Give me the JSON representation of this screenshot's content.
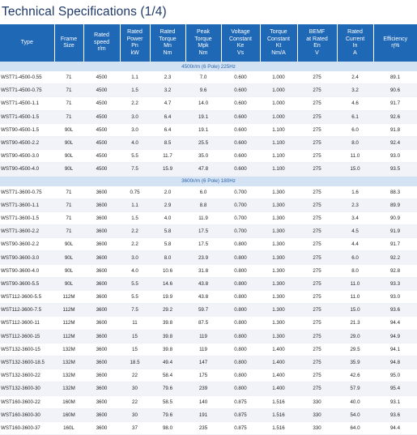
{
  "title": "Technical Specifications (1/4)",
  "columns": [
    {
      "lines": [
        "Type"
      ]
    },
    {
      "lines": [
        "Frame",
        "Size"
      ]
    },
    {
      "lines": [
        "Rated",
        "speed",
        "r/m"
      ]
    },
    {
      "lines": [
        "Rated",
        "Power",
        "Pn",
        "kW"
      ]
    },
    {
      "lines": [
        "Rated",
        "Torque",
        "Mn",
        "Nm"
      ]
    },
    {
      "lines": [
        "Peak",
        "Torque",
        "Mpk",
        "Nm"
      ]
    },
    {
      "lines": [
        "Voltage",
        "Constant",
        "Ke",
        "Vs"
      ]
    },
    {
      "lines": [
        "Torque",
        "Constant",
        "Kt",
        "Nm/A"
      ]
    },
    {
      "lines": [
        "BEMF",
        "at Rated",
        "En",
        "V"
      ]
    },
    {
      "lines": [
        "Rated",
        "Current",
        "In",
        "A"
      ]
    },
    {
      "lines": [
        "Efficiency",
        "η%"
      ]
    }
  ],
  "groups": [
    {
      "label": "4500r/m (6 Pole) 225Hz",
      "rows": [
        [
          "WST71-4500-0.55",
          "71",
          "4500",
          "1.1",
          "2.3",
          "7.0",
          "0.600",
          "1.000",
          "275",
          "2.4",
          "89.1"
        ],
        [
          "WST71-4500-0.75",
          "71",
          "4500",
          "1.5",
          "3.2",
          "9.6",
          "0.600",
          "1.000",
          "275",
          "3.2",
          "90.6"
        ],
        [
          "WST71-4500-1.1",
          "71",
          "4500",
          "2.2",
          "4.7",
          "14.0",
          "0.600",
          "1.000",
          "275",
          "4.6",
          "91.7"
        ],
        [
          "WST71-4500-1.5",
          "71",
          "4500",
          "3.0",
          "6.4",
          "19.1",
          "0.600",
          "1.000",
          "275",
          "6.1",
          "92.6"
        ],
        [
          "WST90-4500-1.5",
          "90L",
          "4500",
          "3.0",
          "6.4",
          "19.1",
          "0.600",
          "1.100",
          "275",
          "6.0",
          "91.8"
        ],
        [
          "WST90-4500-2.2",
          "90L",
          "4500",
          "4.0",
          "8.5",
          "25.5",
          "0.600",
          "1.100",
          "275",
          "8.0",
          "92.4"
        ],
        [
          "WST90-4500-3.0",
          "90L",
          "4500",
          "5.5",
          "11.7",
          "35.0",
          "0.600",
          "1.100",
          "275",
          "11.0",
          "93.0"
        ],
        [
          "WST90-4500-4.0",
          "90L",
          "4500",
          "7.5",
          "15.9",
          "47.8",
          "0.600",
          "1.100",
          "275",
          "15.0",
          "93.5"
        ]
      ]
    },
    {
      "label": "3600r/m (6 Pole) 180Hz",
      "rows": [
        [
          "WST71-3600-0.75",
          "71",
          "3600",
          "0.75",
          "2.0",
          "6.0",
          "0.700",
          "1.300",
          "275",
          "1.6",
          "88.3"
        ],
        [
          "WST71-3600-1.1",
          "71",
          "3600",
          "1.1",
          "2.9",
          "8.8",
          "0.700",
          "1.300",
          "275",
          "2.3",
          "89.9"
        ],
        [
          "WST71-3600-1.5",
          "71",
          "3600",
          "1.5",
          "4.0",
          "11.9",
          "0.700",
          "1.300",
          "275",
          "3.4",
          "90.9"
        ],
        [
          "WST71-3600-2.2",
          "71",
          "3600",
          "2.2",
          "5.8",
          "17.5",
          "0.700",
          "1.300",
          "275",
          "4.5",
          "91.9"
        ],
        [
          "WST90-3600-2.2",
          "90L",
          "3600",
          "2.2",
          "5.8",
          "17.5",
          "0.800",
          "1.300",
          "275",
          "4.4",
          "91.7"
        ],
        [
          "WST90-3600-3.0",
          "90L",
          "3600",
          "3.0",
          "8.0",
          "23.9",
          "0.800",
          "1.300",
          "275",
          "6.0",
          "92.2"
        ],
        [
          "WST90-3600-4.0",
          "90L",
          "3600",
          "4.0",
          "10.6",
          "31.8",
          "0.800",
          "1.300",
          "275",
          "8.0",
          "92.8"
        ],
        [
          "WST90-3600-5.5",
          "90L",
          "3600",
          "5.5",
          "14.6",
          "43.8",
          "0.800",
          "1.300",
          "275",
          "11.0",
          "93.3"
        ],
        [
          "WST112-3600-5.5",
          "112M",
          "3600",
          "5.5",
          "19.9",
          "43.8",
          "0.800",
          "1.300",
          "275",
          "11.0",
          "93.0"
        ],
        [
          "WST112-3600-7.5",
          "112M",
          "3600",
          "7.5",
          "29.2",
          "59.7",
          "0.800",
          "1.300",
          "275",
          "15.0",
          "93.6"
        ],
        [
          "WST112-3600-11",
          "112M",
          "3600",
          "11",
          "39.8",
          "87.5",
          "0.800",
          "1.300",
          "275",
          "21.3",
          "94.4"
        ],
        [
          "WST112-3600-15",
          "112M",
          "3600",
          "15",
          "39.8",
          "119",
          "0.800",
          "1.300",
          "275",
          "29.0",
          "94.9"
        ],
        [
          "WST132-3600-15",
          "132M",
          "3600",
          "15",
          "39.8",
          "119",
          "0.800",
          "1.400",
          "275",
          "29.5",
          "94.1"
        ],
        [
          "WST132-3600-18.5",
          "132M",
          "3600",
          "18.5",
          "49.4",
          "147",
          "0.800",
          "1.400",
          "275",
          "35.9",
          "94.8"
        ],
        [
          "WST132-3600-22",
          "132M",
          "3600",
          "22",
          "58.4",
          "175",
          "0.800",
          "1.400",
          "275",
          "42.6",
          "95.0"
        ],
        [
          "WST132-3600-30",
          "132M",
          "3600",
          "30",
          "79.6",
          "239",
          "0.800",
          "1.400",
          "275",
          "57.9",
          "95.4"
        ],
        [
          "WST160-3600-22",
          "160M",
          "3600",
          "22",
          "58.5",
          "140",
          "0.875",
          "1.516",
          "330",
          "40.0",
          "93.1"
        ],
        [
          "WST160-3600-30",
          "160M",
          "3600",
          "30",
          "79.6",
          "191",
          "0.875",
          "1.516",
          "330",
          "54.0",
          "93.6"
        ],
        [
          "WST160-3600-37",
          "160L",
          "3600",
          "37",
          "98.0",
          "235",
          "0.875",
          "1.516",
          "330",
          "64.0",
          "94.4"
        ]
      ]
    }
  ]
}
